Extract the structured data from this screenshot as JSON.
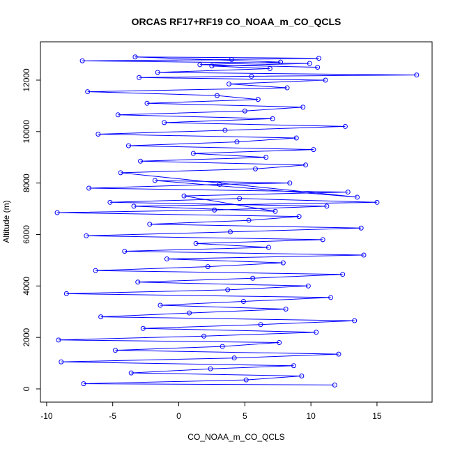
{
  "chart_data": {
    "type": "line",
    "marker": "circle",
    "title": "ORCAS RF17+RF19 CO_NOAA_m_CO_QCLS",
    "x_label": "CO_NOAA_m_CO_QCLS",
    "y_label": "Altitude (m)",
    "color": "#0000ff",
    "x": [
      11.8,
      -7.2,
      5.1,
      9.3,
      -3.6,
      2.4,
      8.7,
      -8.9,
      4.2,
      12.1,
      -4.8,
      3.3,
      7.6,
      -9.1,
      1.9,
      10.4,
      -2.7,
      6.2,
      13.3,
      -5.9,
      0.8,
      8.1,
      -1.4,
      4.9,
      11.5,
      -8.5,
      3.7,
      9.8,
      -3.1,
      5.6,
      12.4,
      -6.3,
      2.2,
      7.9,
      -0.9,
      14.0,
      -4.1,
      6.8,
      1.3,
      10.9,
      -7.0,
      3.9,
      13.8,
      -2.2,
      5.3,
      9.1,
      -9.2,
      2.7,
      11.2,
      -5.2,
      4.6,
      15.0,
      -3.4,
      7.3,
      0.4,
      12.8,
      -6.8,
      3.1,
      8.4,
      -1.8,
      13.5,
      -4.4,
      5.8,
      9.6,
      -2.9,
      6.6,
      1.1,
      10.2,
      -3.8,
      4.4,
      8.9,
      -6.1,
      3.5,
      12.6,
      -1.1,
      7.1,
      -4.6,
      5.0,
      9.4,
      -2.4,
      6.0,
      2.9,
      -6.9,
      8.2,
      3.8,
      11.1,
      -3.0,
      5.5,
      18.0,
      -1.6,
      6.9,
      2.5,
      9.9,
      -7.3,
      4.0,
      10.6,
      -3.3,
      7.7,
      1.6,
      10.5
    ],
    "values": [
      150,
      200,
      350,
      500,
      620,
      780,
      900,
      1050,
      1200,
      1350,
      1500,
      1650,
      1800,
      1900,
      2050,
      2200,
      2350,
      2500,
      2650,
      2800,
      2950,
      3100,
      3250,
      3400,
      3550,
      3700,
      3850,
      4000,
      4150,
      4300,
      4450,
      4600,
      4750,
      4900,
      5050,
      5200,
      5350,
      5500,
      5650,
      5800,
      5950,
      6100,
      6250,
      6400,
      6550,
      6700,
      6850,
      6950,
      7100,
      7250,
      7400,
      7250,
      7100,
      6900,
      7500,
      7650,
      7800,
      7950,
      8000,
      8100,
      7450,
      8400,
      8550,
      8700,
      8850,
      9000,
      9150,
      9300,
      9450,
      9600,
      9750,
      9900,
      10050,
      10200,
      10350,
      10500,
      10650,
      10800,
      10950,
      11100,
      11250,
      11400,
      11550,
      11700,
      11850,
      12000,
      12100,
      12150,
      12200,
      12300,
      12450,
      12550,
      12650,
      12750,
      12800,
      12850,
      12900,
      12700,
      12600,
      12500
    ],
    "xlim": [
      -10.47,
      19.17
    ],
    "xticks": [
      -10,
      -5,
      0,
      5,
      10,
      15
    ],
    "ylim": [
      -515,
      13489
    ],
    "yticks": [
      0,
      2000,
      4000,
      6000,
      8000,
      10000,
      12000
    ]
  }
}
